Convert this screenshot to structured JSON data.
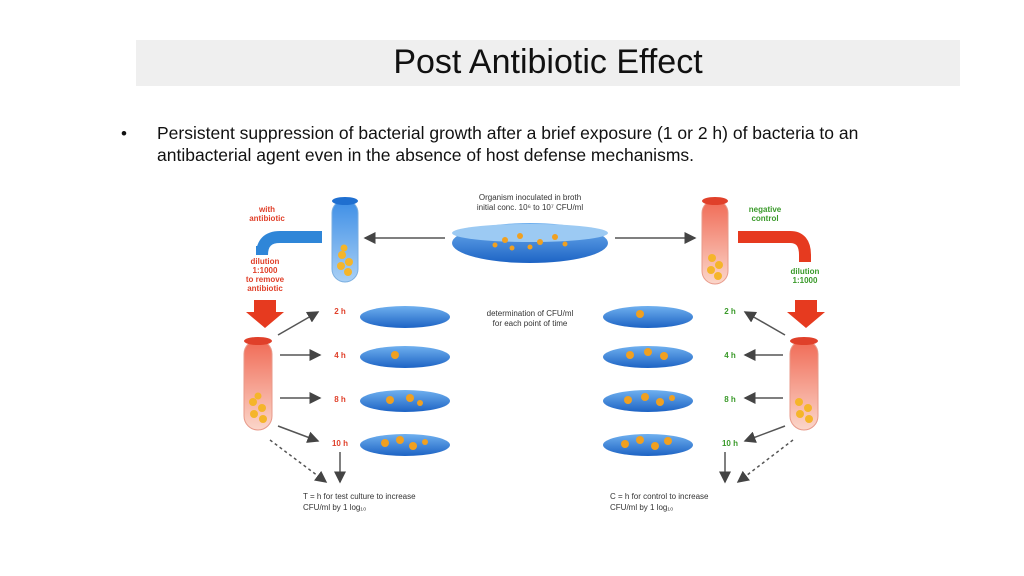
{
  "slide": {
    "title": "Post Antibiotic Effect",
    "bullet_marker": "•",
    "bullet_text": "Persistent suppression of bacterial growth after a brief exposure (1 or 2 h) of bacteria to an antibacterial agent even in the absence of host defense mechanisms."
  },
  "diagram": {
    "top_note_line1": "Organism inoculated in broth",
    "top_note_line2": "initial conc. 10⁶ to 10⁷ CFU/ml",
    "left_label_line1": "with",
    "left_label_line2": "antibiotic",
    "dilution_left_line1": "dilution",
    "dilution_left_line2": "1:1000",
    "dilution_left_line3": "to remove",
    "dilution_left_line4": "antibiotic",
    "right_label_line1": "negative",
    "right_label_line2": "control",
    "dilution_right_line1": "dilution",
    "dilution_right_line2": "1:1000",
    "middle_note_line1": "determination of CFU/ml",
    "middle_note_line2": "for each point of time",
    "time_labels": [
      "2 h",
      "4 h",
      "8 h",
      "10 h"
    ],
    "bottom_left_line1": "T = h for test culture to increase",
    "bottom_left_line2": "CFU/ml by 1 log₁₀",
    "bottom_right_line1": "C = h for control to increase",
    "bottom_right_line2": "CFU/ml by 1 log₁₀",
    "colors": {
      "red_label": "#e0402a",
      "green_label": "#3a9a2a",
      "plate_blue": "#2f7ed8",
      "arrow_red": "#e63a1f",
      "arrow_blue": "#2f86d8",
      "colony": "#f0a020"
    }
  }
}
